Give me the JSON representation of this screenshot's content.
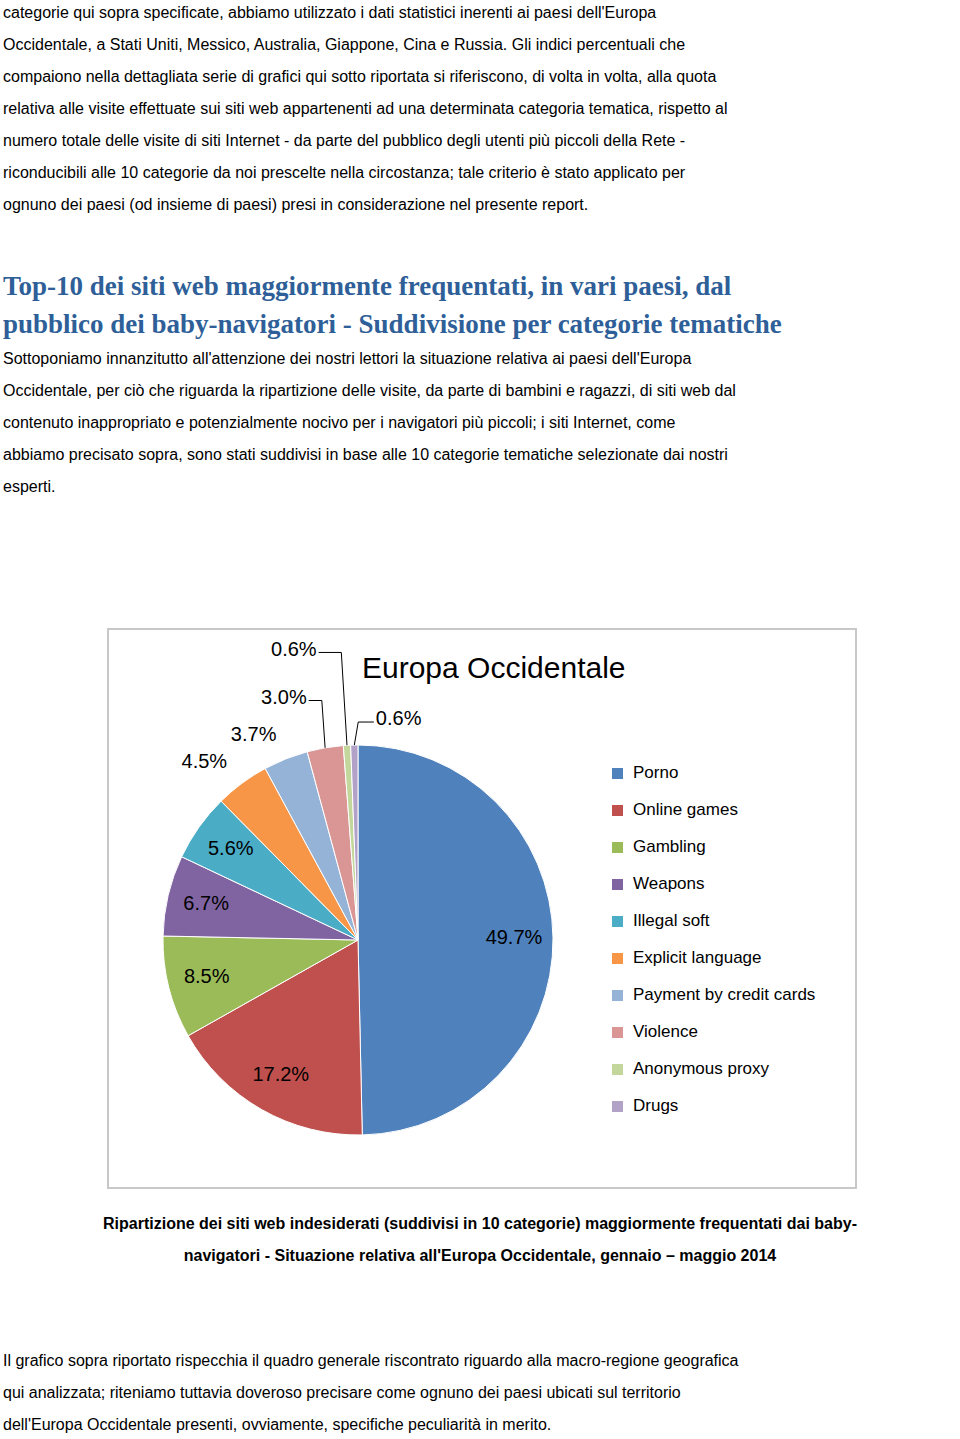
{
  "intro": [
    "categorie qui sopra specificate, abbiamo utilizzato i dati statistici inerenti ai paesi dell'Europa",
    "Occidentale, a Stati Uniti, Messico, Australia, Giappone, Cina e Russia. Gli indici percentuali che",
    "compaiono nella dettagliata serie di grafici qui sotto riportata si riferiscono, di volta in volta, alla quota",
    "relativa alle visite effettuate sui siti web appartenenti ad una determinata categoria tematica, rispetto al",
    "numero totale delle visite di siti Internet - da parte del pubblico degli utenti più piccoli della Rete -",
    "riconducibili alle 10 categorie da noi prescelte nella circostanza; tale criterio è stato applicato per",
    "ognuno dei paesi (od insieme di paesi) presi in considerazione nel presente report."
  ],
  "heading": [
    "Top-10 dei siti web maggiormente frequentati, in vari paesi, dal",
    "pubblico dei baby-navigatori - Suddivisione per categorie tematiche"
  ],
  "paragraph": [
    "Sottoponiamo innanzitutto all'attenzione dei nostri lettori la situazione relativa ai paesi dell'Europa",
    "Occidentale, per ciò che riguarda la ripartizione delle visite, da parte di bambini e ragazzi, di siti web dal",
    "contenuto inappropriato e potenzialmente nocivo per i navigatori più piccoli; i siti Internet, come",
    "abbiamo precisato sopra, sono stati suddivisi in base alle 10 categorie tematiche selezionate dai nostri",
    "esperti."
  ],
  "chart_data": {
    "type": "pie",
    "title": "Europa Occidentale",
    "categories": [
      "Porno",
      "Online games",
      "Gambling",
      "Weapons",
      "Illegal soft",
      "Explicit language",
      "Payment by credit cards",
      "Violence",
      "Anonymous proxy",
      "Drugs"
    ],
    "values": [
      49.7,
      17.2,
      8.5,
      6.7,
      5.6,
      4.5,
      3.7,
      3.0,
      0.6,
      0.6
    ],
    "value_labels": [
      "49.7%",
      "17.2%",
      "8.5%",
      "6.7%",
      "5.6%",
      "4.5%",
      "3.7%",
      "3.0%",
      "0.6%",
      "0.6%"
    ],
    "colors": [
      "#4f81bd",
      "#c0504d",
      "#9bbb59",
      "#8064a2",
      "#4bacc6",
      "#f79646",
      "#95b3d7",
      "#d99694",
      "#c3d69b",
      "#b3a2c7"
    ],
    "legend": "right",
    "data_labels": true
  },
  "caption": [
    "Ripartizione dei siti web indesiderati (suddivisi in 10 categorie) maggiormente frequentati dai baby-",
    "navigatori - Situazione relativa all'Europa Occidentale, gennaio – maggio 2014"
  ],
  "closing": [
    "Il grafico sopra riportato rispecchia il quadro generale riscontrato riguardo alla macro-regione geografica",
    "qui analizzata; riteniamo tuttavia doveroso precisare come ognuno dei paesi ubicati sul territorio",
    "dell'Europa Occidentale presenti, ovviamente, specifiche peculiarità in merito."
  ]
}
